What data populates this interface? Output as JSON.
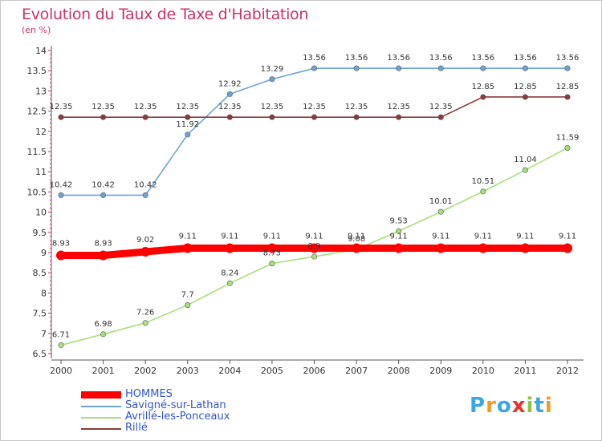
{
  "title": "Evolution du Taux de Taxe d'Habitation",
  "subtitle": "(en %)",
  "logo": {
    "letters": [
      "P",
      "r",
      "o",
      "x",
      "i",
      "t",
      "i"
    ],
    "colors": [
      "#3aa7e0",
      "#f29b20",
      "#3aa7e0",
      "#e8372a",
      "#8cc63f",
      "#3aa7e0",
      "#f29b20"
    ]
  },
  "chart_data": {
    "type": "line",
    "x": [
      "2000",
      "2001",
      "2002",
      "2003",
      "2004",
      "2005",
      "2006",
      "2007",
      "2008",
      "2009",
      "2010",
      "2011",
      "2012"
    ],
    "ylim": [
      6.5,
      14
    ],
    "yticks": [
      "6.5",
      "7",
      "7.5",
      "8",
      "8.5",
      "9",
      "9.5",
      "10",
      "10.5",
      "11",
      "11.5",
      "12",
      "12.5",
      "13",
      "13.5",
      "14"
    ],
    "grid": false,
    "legend_position": "bottom-left",
    "series": [
      {
        "name": "HOMMES",
        "color": "#ff0000",
        "values": [
          8.93,
          8.93,
          9.02,
          9.11,
          9.11,
          9.11,
          9.11,
          9.11,
          9.11,
          9.11,
          9.11,
          9.11,
          9.11
        ],
        "labels": [
          "8.93",
          "8.93",
          "9.02",
          "9.11",
          "9.11",
          "9.11",
          "9.11",
          "9.11",
          "9.11",
          "9.11",
          "9.11",
          "9.11",
          "9.11"
        ]
      },
      {
        "name": "Savigné-sur-Lathan",
        "color": "#6fa3d6",
        "values": [
          10.42,
          10.42,
          10.42,
          11.92,
          12.92,
          13.29,
          13.56,
          13.56,
          13.56,
          13.56,
          13.56,
          13.56,
          13.56
        ],
        "labels": [
          "10.42",
          "10.42",
          "10.42",
          "11.92",
          "12.92",
          "13.29",
          "13.56",
          "13.56",
          "13.56",
          "13.56",
          "13.56",
          "13.56",
          "13.56"
        ]
      },
      {
        "name": "Avrillé-les-Ponceaux",
        "color": "#a5e07a",
        "values": [
          6.71,
          6.98,
          7.26,
          7.7,
          8.24,
          8.73,
          8.9,
          9.08,
          9.53,
          10.01,
          10.51,
          11.04,
          11.59
        ],
        "labels": [
          "6.71",
          "6.98",
          "7.26",
          "7.7",
          "8.24",
          "8.73",
          "8.9",
          "9.08",
          "9.53",
          "10.01",
          "10.51",
          "11.04",
          "11.59"
        ]
      },
      {
        "name": "Rillé",
        "color": "#8b3a3a",
        "values": [
          12.35,
          12.35,
          12.35,
          12.35,
          12.35,
          12.35,
          12.35,
          12.35,
          12.35,
          12.35,
          12.85,
          12.85,
          12.85
        ],
        "labels": [
          "12.35",
          "12.35",
          "12.35",
          "12.35",
          "12.35",
          "12.35",
          "12.35",
          "12.35",
          "12.35",
          "12.35",
          "12.85",
          "12.85",
          "12.85"
        ]
      }
    ]
  }
}
